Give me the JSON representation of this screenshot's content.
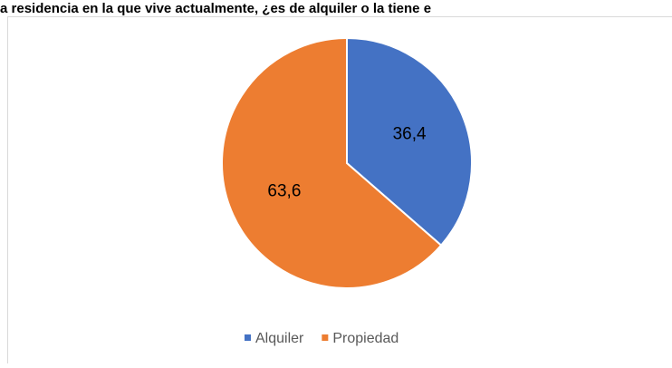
{
  "chart_data": {
    "type": "pie",
    "title": "a residencia en la que vive actualmente, ¿es de alquiler o la tiene e",
    "categories": [
      "Alquiler",
      "Propiedad"
    ],
    "values": [
      36.4,
      63.6
    ],
    "value_labels": [
      "36,4",
      "63,6"
    ],
    "colors": [
      "#4472c4",
      "#ed7d31"
    ],
    "legend": "bottom"
  }
}
